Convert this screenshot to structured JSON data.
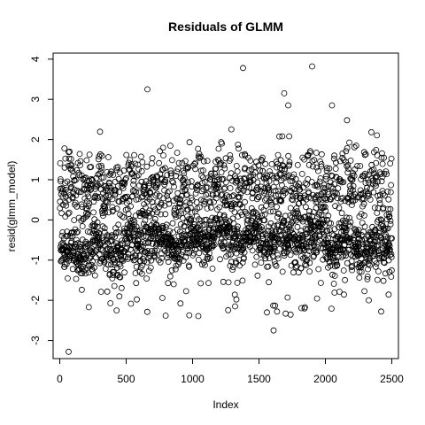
{
  "chart_data": {
    "type": "scatter",
    "title": "Residuals of GLMM",
    "xlabel": "Index",
    "ylabel": "resid(glmm_model)",
    "xlim": [
      -50,
      2550
    ],
    "ylim": [
      -3.45,
      4.15
    ],
    "xticks": [
      0,
      500,
      1000,
      1500,
      2000,
      2500
    ],
    "yticks": [
      -3,
      -2,
      -1,
      0,
      1,
      2,
      3,
      4
    ],
    "marker": "open-circle",
    "n_points": 2500,
    "series": [
      {
        "points_sample": [
          [
            67,
            -3.28
          ],
          [
            660,
            3.25
          ],
          [
            1380,
            3.78
          ],
          [
            1900,
            3.82
          ],
          [
            1690,
            3.15
          ],
          [
            1610,
            -2.75
          ],
          [
            2050,
            2.85
          ],
          [
            1320,
            -2.15
          ],
          [
            1720,
            2.85
          ],
          [
            1560,
            -2.3
          ]
        ],
        "clusters": [
          {
            "x_range": [
              0,
              500
            ],
            "upper_mean": 0.75,
            "lower_mean": -0.8
          },
          {
            "x_range": [
              500,
              1000
            ],
            "upper_mean": 0.75,
            "lower_mean": -0.55
          },
          {
            "x_range": [
              1000,
              1500
            ],
            "upper_mean": 0.8,
            "lower_mean": -0.45
          },
          {
            "x_range": [
              1500,
              2000
            ],
            "upper_mean": 0.8,
            "lower_mean": -0.5
          },
          {
            "x_range": [
              2000,
              2500
            ],
            "upper_mean": 0.85,
            "lower_mean": -0.65
          }
        ]
      }
    ]
  }
}
